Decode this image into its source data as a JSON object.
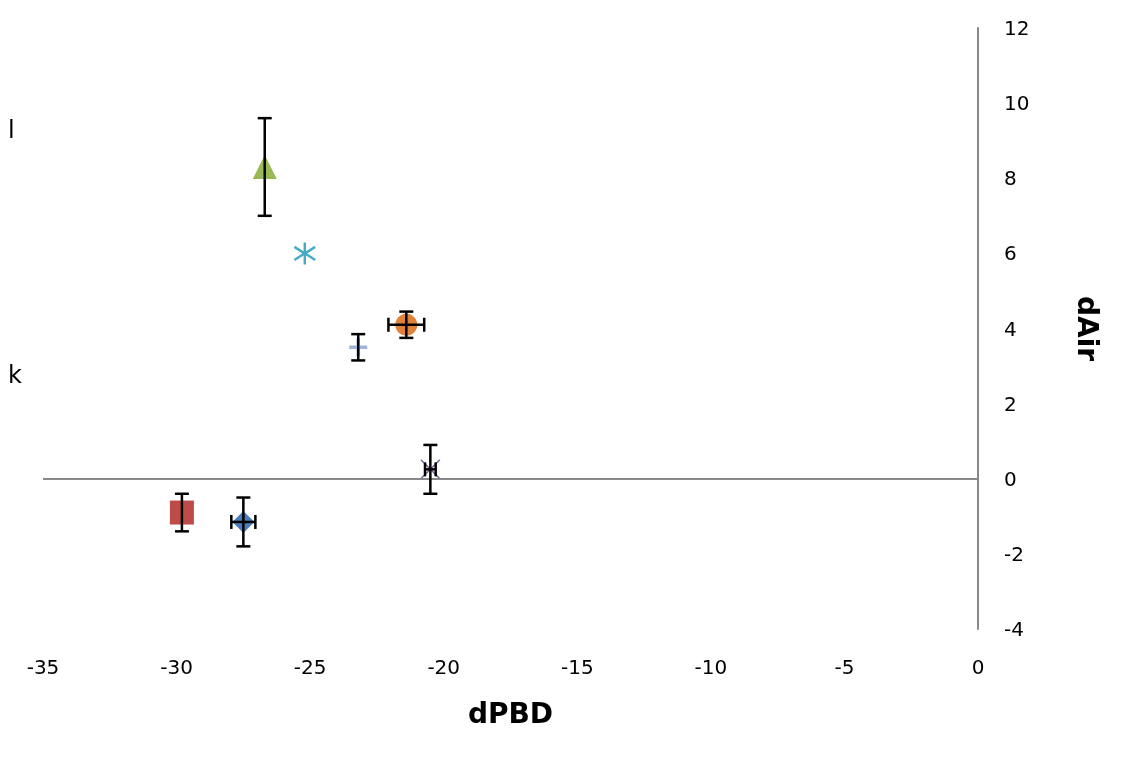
{
  "chart_data": {
    "type": "scatter",
    "xlabel": "dPBD",
    "ylabel": "dAir",
    "xlim": [
      -35,
      0
    ],
    "xticks": [
      -35,
      -30,
      -25,
      -20,
      -15,
      -10,
      -5,
      0
    ],
    "ylim": [
      -4,
      12
    ],
    "yticks": [
      -4,
      -2,
      0,
      2,
      4,
      6,
      8,
      10,
      12
    ],
    "ref_lines": [
      {
        "axis": "y",
        "value": 0,
        "color": "#888888"
      }
    ],
    "annotations": [
      "l",
      "k"
    ],
    "series": [
      {
        "color": "#4a7ebb",
        "marker": "diamond",
        "x": [
          -27.5
        ],
        "values": [
          -1.15
        ],
        "errors": [
          0.65
        ],
        "xerrors": [
          0.45
        ]
      },
      {
        "color": "#be4b48",
        "marker": "square",
        "x": [
          -29.8
        ],
        "values": [
          -0.9
        ],
        "errors": [
          0.5
        ],
        "xerrors": [
          null
        ]
      },
      {
        "color": "#98b954",
        "marker": "triangle",
        "x": [
          -26.7
        ],
        "values": [
          8.3
        ],
        "errors": [
          1.3
        ],
        "xerrors": [
          null
        ]
      },
      {
        "color": "#7d60a0",
        "marker": "cross",
        "x": [
          -20.5
        ],
        "values": [
          0.25
        ],
        "errors": [
          0.65
        ],
        "xerrors": [
          0.2
        ]
      },
      {
        "color": "#46aac5",
        "marker": "star",
        "x": [
          -25.2
        ],
        "values": [
          6.0
        ],
        "errors": [
          null
        ],
        "xerrors": [
          null
        ]
      },
      {
        "color": "#e0823a",
        "marker": "circle",
        "x": [
          -21.4
        ],
        "values": [
          4.1
        ],
        "errors": [
          0.35
        ],
        "xerrors": [
          0.67
        ]
      },
      {
        "color": "#9fb4da",
        "marker": "plus",
        "x": [
          -23.2
        ],
        "values": [
          3.5
        ],
        "errors": [
          0.35
        ],
        "xerrors": [
          null
        ]
      }
    ]
  }
}
